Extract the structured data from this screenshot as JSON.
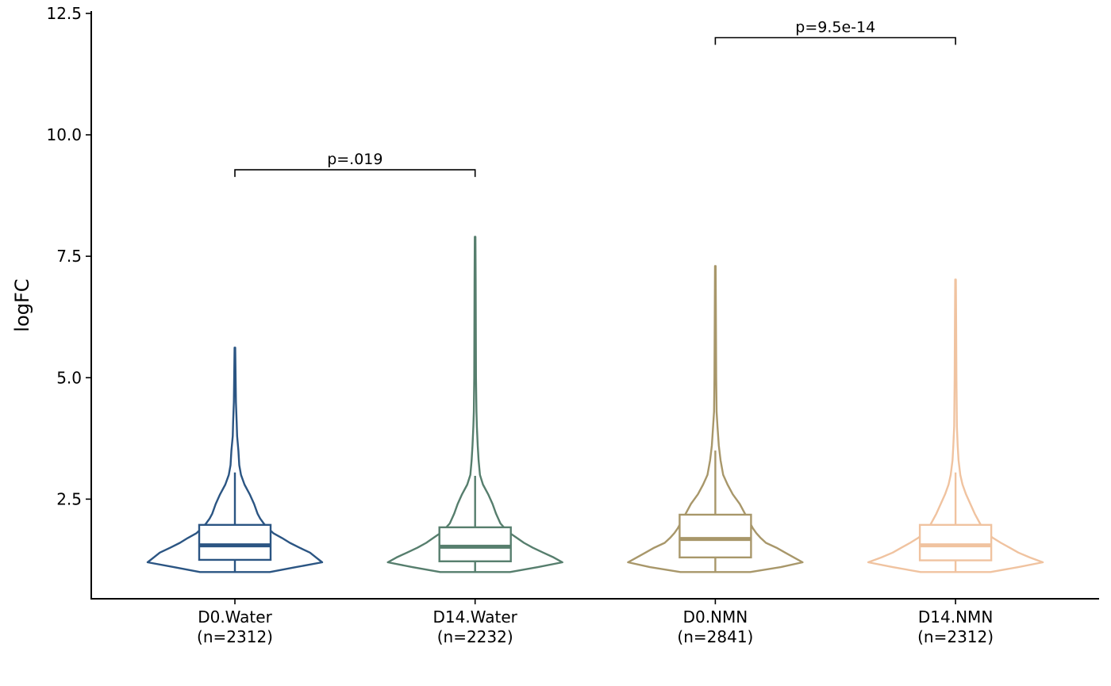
{
  "chart_data": {
    "type": "violin",
    "ylabel": "logFC",
    "xlabel": "",
    "ylim": [
      0.6,
      12.5
    ],
    "yticks": [
      2.5,
      5.0,
      7.5,
      10.0,
      12.5
    ],
    "ytick_labels": [
      "2.5",
      "5.0",
      "7.5",
      "10.0",
      "12.5"
    ],
    "grid": false,
    "legend": "none",
    "groups": [
      {
        "name": "D0.Water",
        "n_label": "(n=2312)",
        "color": "#2b5583",
        "box": {
          "q1": 1.25,
          "median": 1.55,
          "q3": 1.97,
          "whisker_low": 1.0,
          "whisker_high": 3.05
        },
        "max": 5.62,
        "violin_profile": [
          [
            1.0,
            0.4
          ],
          [
            1.1,
            0.7
          ],
          [
            1.2,
            1.0
          ],
          [
            1.3,
            0.93
          ],
          [
            1.4,
            0.86
          ],
          [
            1.5,
            0.74
          ],
          [
            1.6,
            0.63
          ],
          [
            1.7,
            0.54
          ],
          [
            1.8,
            0.44
          ],
          [
            1.9,
            0.38
          ],
          [
            2.0,
            0.33
          ],
          [
            2.1,
            0.29
          ],
          [
            2.2,
            0.26
          ],
          [
            2.4,
            0.22
          ],
          [
            2.6,
            0.17
          ],
          [
            2.8,
            0.11
          ],
          [
            3.0,
            0.07
          ],
          [
            3.2,
            0.05
          ],
          [
            3.5,
            0.04
          ],
          [
            3.8,
            0.025
          ],
          [
            4.1,
            0.02
          ],
          [
            4.5,
            0.012
          ],
          [
            5.0,
            0.008
          ],
          [
            5.62,
            0.004
          ]
        ]
      },
      {
        "name": "D14.Water",
        "n_label": "(n=2232)",
        "color": "#567e6d",
        "box": {
          "q1": 1.22,
          "median": 1.52,
          "q3": 1.92,
          "whisker_low": 1.0,
          "whisker_high": 2.98
        },
        "max": 7.9,
        "violin_profile": [
          [
            1.0,
            0.4
          ],
          [
            1.1,
            0.72
          ],
          [
            1.2,
            1.0
          ],
          [
            1.3,
            0.9
          ],
          [
            1.4,
            0.78
          ],
          [
            1.5,
            0.66
          ],
          [
            1.6,
            0.56
          ],
          [
            1.7,
            0.48
          ],
          [
            1.8,
            0.4
          ],
          [
            1.9,
            0.34
          ],
          [
            2.0,
            0.29
          ],
          [
            2.2,
            0.24
          ],
          [
            2.4,
            0.2
          ],
          [
            2.6,
            0.15
          ],
          [
            2.8,
            0.09
          ],
          [
            3.0,
            0.055
          ],
          [
            3.3,
            0.04
          ],
          [
            3.6,
            0.03
          ],
          [
            4.0,
            0.02
          ],
          [
            4.3,
            0.015
          ],
          [
            5.0,
            0.01
          ],
          [
            6.0,
            0.008
          ],
          [
            7.0,
            0.006
          ],
          [
            7.9,
            0.004
          ]
        ]
      },
      {
        "name": "D0.NMN",
        "n_label": "(n=2841)",
        "color": "#a8976a",
        "box": {
          "q1": 1.3,
          "median": 1.68,
          "q3": 2.18,
          "whisker_low": 1.0,
          "whisker_high": 3.5
        },
        "max": 7.3,
        "violin_profile": [
          [
            1.0,
            0.4
          ],
          [
            1.1,
            0.75
          ],
          [
            1.2,
            1.0
          ],
          [
            1.3,
            0.9
          ],
          [
            1.4,
            0.8
          ],
          [
            1.5,
            0.7
          ],
          [
            1.6,
            0.58
          ],
          [
            1.7,
            0.52
          ],
          [
            1.8,
            0.47
          ],
          [
            1.9,
            0.43
          ],
          [
            2.0,
            0.4
          ],
          [
            2.2,
            0.34
          ],
          [
            2.4,
            0.28
          ],
          [
            2.6,
            0.2
          ],
          [
            2.8,
            0.14
          ],
          [
            3.0,
            0.09
          ],
          [
            3.3,
            0.06
          ],
          [
            3.6,
            0.04
          ],
          [
            4.0,
            0.025
          ],
          [
            4.3,
            0.015
          ],
          [
            5.0,
            0.01
          ],
          [
            6.0,
            0.007
          ],
          [
            7.3,
            0.004
          ]
        ]
      },
      {
        "name": "D14.NMN",
        "n_label": "(n=2312)",
        "color": "#f0c3a0",
        "box": {
          "q1": 1.24,
          "median": 1.55,
          "q3": 1.97,
          "whisker_low": 1.0,
          "whisker_high": 3.05
        },
        "max": 7.02,
        "violin_profile": [
          [
            1.0,
            0.4
          ],
          [
            1.1,
            0.72
          ],
          [
            1.2,
            1.0
          ],
          [
            1.3,
            0.85
          ],
          [
            1.4,
            0.72
          ],
          [
            1.5,
            0.62
          ],
          [
            1.6,
            0.52
          ],
          [
            1.7,
            0.43
          ],
          [
            1.8,
            0.36
          ],
          [
            1.9,
            0.31
          ],
          [
            2.0,
            0.28
          ],
          [
            2.2,
            0.22
          ],
          [
            2.4,
            0.17
          ],
          [
            2.6,
            0.12
          ],
          [
            2.8,
            0.08
          ],
          [
            3.0,
            0.055
          ],
          [
            3.3,
            0.035
          ],
          [
            3.6,
            0.025
          ],
          [
            4.0,
            0.015
          ],
          [
            5.0,
            0.01
          ],
          [
            6.0,
            0.007
          ],
          [
            7.02,
            0.004
          ]
        ]
      }
    ],
    "annotations": [
      {
        "from": 0,
        "to": 1,
        "y": 9.28,
        "label": "p=.019"
      },
      {
        "from": 2,
        "to": 3,
        "y": 12.0,
        "label": "p=9.5e-14"
      }
    ]
  }
}
